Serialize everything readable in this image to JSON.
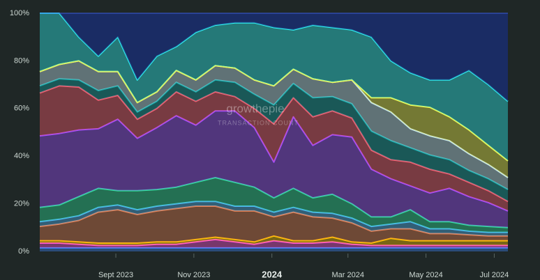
{
  "chart_data": {
    "type": "stacked-area",
    "watermark": {
      "brand": "growthepie",
      "subtitle": "TRANSACTION COUNT"
    },
    "x": [
      0,
      1,
      2,
      3,
      4,
      5,
      6,
      7,
      8,
      9,
      10,
      11,
      12,
      13,
      14,
      15,
      16,
      17,
      18,
      19,
      20,
      21,
      22,
      23,
      24
    ],
    "xlim": [
      0,
      24
    ],
    "xticks": [
      {
        "value": 3.9,
        "label": "Sept 2023"
      },
      {
        "value": 7.9,
        "label": "Nov 2023"
      },
      {
        "value": 11.9,
        "label": "2024"
      },
      {
        "value": 15.8,
        "label": "Mar 2024"
      },
      {
        "value": 19.8,
        "label": "May 2024"
      },
      {
        "value": 23.3,
        "label": "Jul 2024"
      }
    ],
    "ylim": [
      0,
      100
    ],
    "yticks": [
      {
        "value": 0,
        "label": "0%"
      },
      {
        "value": 20,
        "label": "20%"
      },
      {
        "value": 40,
        "label": "40%"
      },
      {
        "value": 60,
        "label": "60%"
      },
      {
        "value": 80,
        "label": "80%"
      },
      {
        "value": 100,
        "label": "100%"
      }
    ],
    "series": [
      {
        "color": "#3b82f6",
        "values": [
          1.5,
          1.5,
          1.5,
          1.5,
          1.5,
          1.5,
          1.5,
          1.5,
          1.5,
          1.5,
          1.5,
          1.5,
          1.5,
          1.5,
          1.5,
          1.5,
          1.5,
          1.5,
          1.5,
          1.5,
          1.5,
          1.5,
          1.5,
          1.5,
          1.5
        ]
      },
      {
        "color": "#ff4fd8",
        "values": [
          2,
          2,
          1.5,
          1,
          1,
          1,
          1.5,
          1.5,
          2.5,
          3.5,
          2.5,
          1.5,
          3,
          2,
          2,
          2.5,
          1.5,
          1,
          1,
          1,
          1,
          1,
          1,
          1,
          1
        ]
      },
      {
        "color": "#ffc300",
        "values": [
          1,
          1,
          1,
          1,
          1,
          1,
          1,
          1,
          1,
          1,
          1,
          1,
          2,
          1,
          1,
          2,
          1,
          1,
          3,
          2,
          2,
          2,
          2,
          2,
          2
        ]
      },
      {
        "color": "#e67e50",
        "values": [
          6,
          7,
          9,
          13,
          14,
          12,
          13,
          14,
          14,
          13,
          12,
          13,
          8,
          12,
          10,
          8,
          8,
          5,
          4,
          5,
          3,
          3,
          2.5,
          2,
          2
        ]
      },
      {
        "color": "#4fb3f0",
        "values": [
          2,
          2,
          2,
          2,
          2,
          2,
          2,
          2,
          2,
          2,
          2,
          2,
          2,
          2,
          2,
          2,
          2,
          2,
          2,
          3,
          2,
          2,
          1.5,
          1.5,
          1.5
        ]
      },
      {
        "color": "#2dde98",
        "values": [
          6,
          6,
          8,
          8,
          6,
          8,
          7,
          7,
          8,
          10,
          10,
          8,
          6,
          8,
          6,
          8,
          6,
          4,
          3,
          5,
          3,
          3,
          2.5,
          2.5,
          2
        ]
      },
      {
        "color": "#9d4dff",
        "values": [
          30,
          30,
          28,
          25,
          30,
          22,
          26,
          30,
          24,
          28,
          30,
          25,
          15,
          30,
          22,
          25,
          28,
          20,
          16,
          10,
          12,
          14,
          12,
          10,
          7
        ]
      },
      {
        "color": "#ff5a6e",
        "values": [
          18,
          20,
          18,
          12,
          10,
          8,
          8,
          10,
          10,
          8,
          6,
          8,
          16,
          8,
          12,
          10,
          8,
          8,
          8,
          10,
          10,
          6,
          6,
          5,
          4
        ]
      },
      {
        "color": "#13a3a3",
        "values": [
          3,
          3,
          3,
          4,
          4,
          3,
          3,
          4,
          4,
          5,
          6,
          6,
          8,
          6,
          8,
          6,
          6,
          8,
          8,
          6,
          6,
          6,
          5,
          5,
          5
        ]
      },
      {
        "color": "#c3e4f0",
        "values": [
          6,
          6,
          8,
          8,
          6,
          4,
          4,
          5,
          5,
          6,
          6,
          6,
          8,
          6,
          8,
          6,
          10,
          12,
          12,
          8,
          8,
          8,
          7,
          6,
          5
        ]
      },
      {
        "color": "#f6f54a",
        "values": [
          0,
          0,
          0,
          0,
          0,
          0,
          0,
          0,
          0,
          0,
          0,
          0,
          0,
          0,
          0,
          0,
          0,
          2,
          6,
          10,
          12,
          10,
          10,
          8,
          7
        ]
      },
      {
        "color": "#2ff6f6",
        "values": [
          24.5,
          21.5,
          10,
          6.5,
          14.5,
          9.5,
          15,
          10,
          20,
          17,
          19,
          24,
          24.5,
          16.5,
          22.5,
          23,
          21,
          25.5,
          15.5,
          13.5,
          11.5,
          15.5,
          25,
          25.5,
          25
        ]
      },
      {
        "color": "#1a2f7a",
        "values": [
          0,
          0,
          10,
          18,
          10,
          28,
          18,
          14,
          8,
          5,
          4,
          4,
          6,
          7,
          5,
          6,
          7,
          10,
          20,
          25,
          28,
          28,
          24,
          30,
          37
        ]
      }
    ]
  }
}
